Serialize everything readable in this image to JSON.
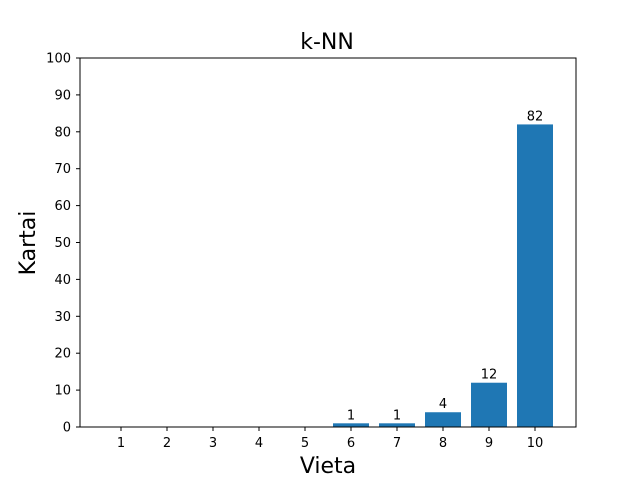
{
  "chart_data": {
    "type": "bar",
    "title": "k-NN",
    "xlabel": "Vieta",
    "ylabel": "Kartai",
    "categories": [
      "1",
      "2",
      "3",
      "4",
      "5",
      "6",
      "7",
      "8",
      "9",
      "10"
    ],
    "values": [
      0,
      0,
      0,
      0,
      0,
      1,
      1,
      4,
      12,
      82
    ],
    "data_labels": [
      null,
      null,
      null,
      null,
      null,
      "1",
      "1",
      "4",
      "12",
      "82"
    ],
    "ylim": [
      0,
      100
    ],
    "yticks": [
      "0",
      "10",
      "20",
      "30",
      "40",
      "50",
      "60",
      "70",
      "80",
      "90",
      "100"
    ],
    "grid": false,
    "legend": "none",
    "bar_color": "#1f77b4"
  }
}
